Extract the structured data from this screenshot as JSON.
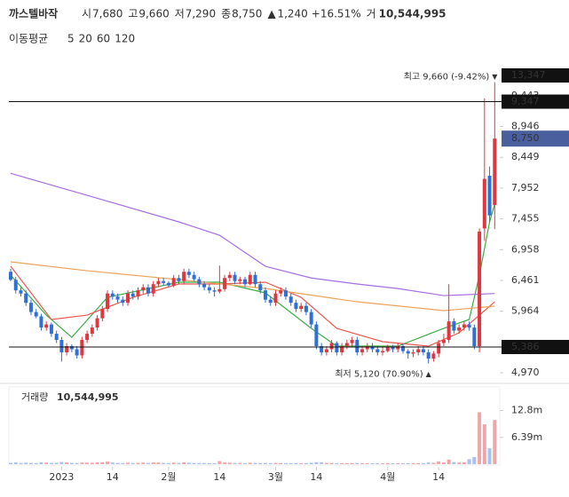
{
  "header": {
    "title": "까스텔바작",
    "stats": [
      {
        "label": "시",
        "value": "7,680"
      },
      {
        "label": "고",
        "value": "9,660"
      },
      {
        "label": "저",
        "value": "7,290"
      },
      {
        "label": "종",
        "value": "8,750"
      }
    ],
    "change": "1,240",
    "change_pct": "+16.51%",
    "volume_label": "거",
    "volume": "10,544,995"
  },
  "chart_data": {
    "type": "candlestick",
    "legend_title": "이동평균",
    "open": [
      6600,
      6470,
      6300,
      6250,
      6100,
      5950,
      5880,
      5700,
      5750,
      5600,
      5500,
      5300,
      5400,
      5350,
      5250,
      5500,
      5600,
      5700,
      5850,
      6000,
      6250,
      6200,
      6150,
      6100,
      6250,
      6200,
      6300,
      6350,
      6250,
      6400,
      6450,
      6420,
      6380,
      6500,
      6450,
      6600,
      6550,
      6480,
      6400,
      6350,
      6300,
      6280,
      6320,
      6500,
      6550,
      6450,
      6480,
      6400,
      6550,
      6400,
      6300,
      6150,
      6100,
      6250,
      6300,
      6200,
      6100,
      6000,
      6050,
      5950,
      5750,
      5400,
      5300,
      5350,
      5450,
      5300,
      5400,
      5450,
      5500,
      5300,
      5350,
      5400,
      5350,
      5300,
      5320,
      5380,
      5350,
      5400,
      5320,
      5280,
      5300,
      5350,
      5300,
      5200,
      5280,
      5450,
      5500,
      5800,
      5650,
      5700,
      5750,
      5700,
      5400,
      7300,
      8150,
      7680
    ],
    "high": [
      6650,
      6520,
      6350,
      6300,
      6150,
      6000,
      5920,
      5800,
      5780,
      5650,
      5550,
      5450,
      5430,
      5400,
      5550,
      5650,
      5750,
      5900,
      6050,
      6300,
      6300,
      6250,
      6200,
      6300,
      6300,
      6350,
      6400,
      6400,
      6450,
      6500,
      6500,
      6450,
      6550,
      6550,
      6650,
      6650,
      6600,
      6520,
      6450,
      6400,
      6350,
      6700,
      6550,
      6600,
      6600,
      6520,
      6520,
      6600,
      6600,
      6450,
      6350,
      6200,
      6300,
      6350,
      6350,
      6250,
      6150,
      6100,
      6100,
      6000,
      5800,
      5450,
      5400,
      5500,
      5480,
      5450,
      5500,
      5550,
      5550,
      5400,
      5450,
      5450,
      5400,
      5380,
      5420,
      5420,
      5450,
      5450,
      5350,
      5350,
      5400,
      5400,
      5350,
      5320,
      5500,
      5600,
      6400,
      5850,
      5750,
      5800,
      5800,
      5750,
      7300,
      9400,
      8300,
      9660
    ],
    "low": [
      6450,
      6250,
      6200,
      6050,
      5900,
      5850,
      5650,
      5650,
      5550,
      5450,
      5150,
      5250,
      5300,
      5200,
      5200,
      5450,
      5550,
      5650,
      5800,
      5950,
      6150,
      6100,
      6050,
      6050,
      6150,
      6150,
      6250,
      6200,
      6200,
      6350,
      6380,
      6350,
      6350,
      6400,
      6400,
      6500,
      6450,
      6350,
      6300,
      6250,
      6200,
      6250,
      6280,
      6450,
      6400,
      6400,
      6350,
      6380,
      6350,
      6250,
      6100,
      6050,
      6050,
      6200,
      6150,
      6050,
      5950,
      5950,
      5900,
      5700,
      5350,
      5250,
      5250,
      5300,
      5250,
      5250,
      5350,
      5400,
      5250,
      5250,
      5300,
      5300,
      5250,
      5250,
      5300,
      5300,
      5300,
      5280,
      5200,
      5220,
      5250,
      5250,
      5120,
      5150,
      5220,
      5400,
      5450,
      5600,
      5600,
      5650,
      5650,
      5350,
      5300,
      7100,
      7400,
      7290
    ],
    "close": [
      6470,
      6300,
      6250,
      6100,
      5950,
      5880,
      5700,
      5750,
      5600,
      5500,
      5300,
      5400,
      5350,
      5250,
      5500,
      5600,
      5700,
      5850,
      6000,
      6250,
      6200,
      6150,
      6100,
      6250,
      6200,
      6300,
      6350,
      6250,
      6400,
      6450,
      6420,
      6380,
      6500,
      6450,
      6600,
      6550,
      6480,
      6400,
      6350,
      6300,
      6280,
      6320,
      6500,
      6550,
      6450,
      6480,
      6400,
      6550,
      6400,
      6300,
      6150,
      6100,
      6250,
      6300,
      6200,
      6100,
      6000,
      6050,
      5950,
      5750,
      5400,
      5300,
      5350,
      5450,
      5300,
      5400,
      5450,
      5500,
      5300,
      5350,
      5400,
      5350,
      5300,
      5320,
      5380,
      5350,
      5400,
      5320,
      5280,
      5300,
      5350,
      5300,
      5200,
      5280,
      5450,
      5500,
      5800,
      5650,
      5700,
      5750,
      5700,
      5400,
      7250,
      8100,
      7510,
      8750
    ],
    "up_color": "#e0373f",
    "down_color": "#2f6fd6",
    "series": [
      {
        "name": "5",
        "color": "#3cae48",
        "x": [
          0,
          7,
          12,
          19,
          33,
          41,
          50,
          59,
          64,
          76,
          85,
          90,
          92,
          94,
          95
        ],
        "values": [
          6546,
          5901,
          5543,
          6188,
          6432,
          6432,
          6260,
          5687,
          5400,
          5400,
          5687,
          5830,
          6546,
          7406,
          7693
        ]
      },
      {
        "name": "20",
        "color": "#e8594f",
        "x": [
          0,
          8,
          15,
          24,
          33,
          41,
          50,
          57,
          64,
          73,
          82,
          88,
          95
        ],
        "values": [
          6690,
          5830,
          5901,
          6188,
          6403,
          6403,
          6432,
          6188,
          5687,
          5472,
          5400,
          5615,
          6116
        ]
      },
      {
        "name": "60",
        "color": "#eda35a",
        "x": [
          0,
          15,
          33,
          50,
          68,
          85,
          95
        ],
        "values": [
          6761,
          6617,
          6474,
          6331,
          6116,
          5973,
          6045
        ]
      },
      {
        "name": "120",
        "color": "#a66fe0",
        "x": [
          0,
          15,
          33,
          41,
          50,
          59,
          68,
          76,
          85,
          95
        ],
        "values": [
          8190,
          7835,
          7406,
          7190,
          6689,
          6500,
          6403,
          6330,
          6216,
          6250
        ]
      }
    ],
    "ylim": [
      4827,
      9770
    ],
    "yticks": [
      {
        "value": 4970,
        "label": "4,970"
      },
      {
        "value": 5964,
        "label": "5,964"
      },
      {
        "value": 6461,
        "label": "6,461"
      },
      {
        "value": 6958,
        "label": "6,958"
      },
      {
        "value": 7455,
        "label": "7,455"
      },
      {
        "value": 7952,
        "label": "7,952"
      },
      {
        "value": 8449,
        "label": "8,449"
      },
      {
        "value": 8946,
        "label": "8,946"
      },
      {
        "value": 9443,
        "label": "9,443"
      }
    ],
    "xticks": [
      {
        "value": 10,
        "label": "2023"
      },
      {
        "value": 20,
        "label": "14"
      },
      {
        "value": 31,
        "label": "2월"
      },
      {
        "value": 41,
        "label": "14"
      },
      {
        "value": 52,
        "label": "3월"
      },
      {
        "value": 60,
        "label": "14"
      },
      {
        "value": 74,
        "label": "4월"
      },
      {
        "value": 84,
        "label": "14"
      }
    ],
    "price_lines": [
      {
        "value": 9347,
        "label": "9,347"
      },
      {
        "value": 5386,
        "label": "5,386"
      }
    ],
    "current": {
      "value": 8750,
      "label": "8,750",
      "color": "#4a5f9e"
    },
    "top_badge": "13,347",
    "max_annotation": "최고 9,660 (-9.42%)",
    "min_annotation": "최저 5,120 (70.90%)",
    "volume_title": "거래량",
    "volume_total": "10,544,995",
    "volume": [
      320000,
      410000,
      280000,
      350000,
      300000,
      260000,
      450000,
      380000,
      290000,
      330000,
      520000,
      410000,
      300000,
      280000,
      390000,
      350000,
      330000,
      420000,
      460000,
      610000,
      380000,
      300000,
      270000,
      350000,
      290000,
      320000,
      360000,
      280000,
      400000,
      380000,
      300000,
      270000,
      350000,
      290000,
      420000,
      330000,
      300000,
      280000,
      260000,
      240000,
      250000,
      720000,
      380000,
      350000,
      300000,
      270000,
      260000,
      330000,
      310000,
      280000,
      300000,
      260000,
      290000,
      270000,
      250000,
      260000,
      280000,
      240000,
      270000,
      330000,
      480000,
      400000,
      300000,
      280000,
      260000,
      250000,
      240000,
      260000,
      300000,
      250000,
      240000,
      230000,
      250000,
      220000,
      240000,
      230000,
      250000,
      240000,
      260000,
      230000,
      250000,
      240000,
      380000,
      300000,
      650000,
      420000,
      1100000,
      500000,
      380000,
      420000,
      1200000,
      1700000,
      12400000,
      9500000,
      3800000,
      10544995
    ],
    "vlim": [
      0,
      18000000
    ],
    "vticks": [
      {
        "value": 6390000,
        "label": "6.39m"
      },
      {
        "value": 12800000,
        "label": "12.8m"
      }
    ]
  }
}
